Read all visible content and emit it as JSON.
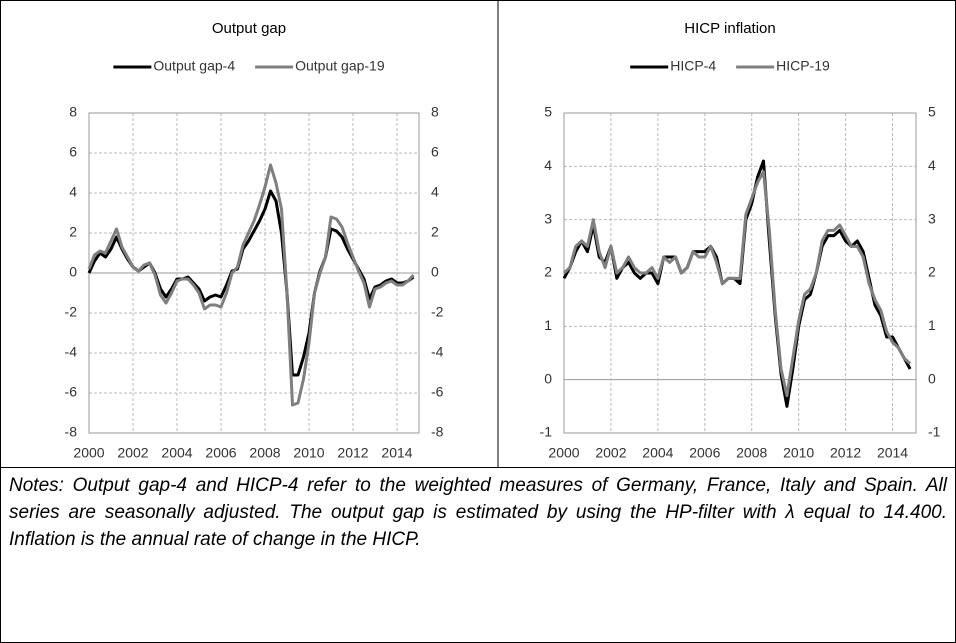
{
  "chart_data": [
    {
      "type": "line",
      "title": "Output gap",
      "x": [
        2000,
        2000.25,
        2000.5,
        2000.75,
        2001,
        2001.25,
        2001.5,
        2001.75,
        2002,
        2002.25,
        2002.5,
        2002.75,
        2003,
        2003.25,
        2003.5,
        2003.75,
        2004,
        2004.25,
        2004.5,
        2004.75,
        2005,
        2005.25,
        2005.5,
        2005.75,
        2006,
        2006.25,
        2006.5,
        2006.75,
        2007,
        2007.25,
        2007.5,
        2007.75,
        2008,
        2008.25,
        2008.5,
        2008.75,
        2009,
        2009.25,
        2009.5,
        2009.75,
        2010,
        2010.25,
        2010.5,
        2010.75,
        2011,
        2011.25,
        2011.5,
        2011.75,
        2012,
        2012.25,
        2012.5,
        2012.75,
        2013,
        2013.25,
        2013.5,
        2013.75,
        2014,
        2014.25,
        2014.5,
        2014.75
      ],
      "series": [
        {
          "name": "Output gap-4",
          "color": "#000000",
          "values": [
            0.0,
            0.6,
            1.0,
            0.8,
            1.2,
            1.8,
            1.2,
            0.7,
            0.3,
            0.1,
            0.3,
            0.5,
            0.0,
            -0.8,
            -1.2,
            -0.8,
            -0.3,
            -0.3,
            -0.2,
            -0.5,
            -0.8,
            -1.4,
            -1.2,
            -1.1,
            -1.2,
            -0.6,
            0.1,
            0.2,
            1.2,
            1.6,
            2.1,
            2.6,
            3.2,
            4.1,
            3.6,
            2.0,
            -1.0,
            -5.1,
            -5.1,
            -4.2,
            -3.0,
            -1.0,
            0.1,
            0.8,
            2.2,
            2.1,
            1.8,
            1.2,
            0.7,
            0.2,
            -0.3,
            -1.3,
            -0.7,
            -0.6,
            -0.4,
            -0.3,
            -0.5,
            -0.5,
            -0.4,
            -0.2
          ]
        },
        {
          "name": "Output gap-19",
          "color": "#7f7f7f",
          "values": [
            0.2,
            0.9,
            1.1,
            1.0,
            1.6,
            2.2,
            1.3,
            0.8,
            0.3,
            0.1,
            0.4,
            0.5,
            -0.1,
            -1.1,
            -1.5,
            -1.0,
            -0.4,
            -0.3,
            -0.3,
            -0.6,
            -1.0,
            -1.8,
            -1.6,
            -1.6,
            -1.7,
            -1.0,
            0.0,
            0.3,
            1.4,
            2.0,
            2.6,
            3.4,
            4.3,
            5.4,
            4.5,
            3.2,
            -1.0,
            -6.6,
            -6.5,
            -5.3,
            -3.5,
            -1.0,
            0.0,
            0.8,
            2.8,
            2.7,
            2.3,
            1.5,
            0.8,
            0.1,
            -0.5,
            -1.7,
            -0.8,
            -0.7,
            -0.5,
            -0.4,
            -0.6,
            -0.6,
            -0.4,
            -0.1
          ]
        }
      ],
      "xlim": [
        2000,
        2015
      ],
      "xticks": [
        2000,
        2002,
        2004,
        2006,
        2008,
        2010,
        2012,
        2014
      ],
      "ylim": [
        -8,
        8
      ],
      "yticks": [
        -8,
        -6,
        -4,
        -2,
        0,
        2,
        4,
        6,
        8
      ],
      "y2lim": [
        -8,
        8
      ],
      "y2ticks": [
        -8,
        -6,
        -4,
        -2,
        0,
        2,
        4,
        6,
        8
      ],
      "grid": true,
      "legend": "top"
    },
    {
      "type": "line",
      "title": "HICP inflation",
      "x": [
        2000,
        2000.25,
        2000.5,
        2000.75,
        2001,
        2001.25,
        2001.5,
        2001.75,
        2002,
        2002.25,
        2002.5,
        2002.75,
        2003,
        2003.25,
        2003.5,
        2003.75,
        2004,
        2004.25,
        2004.5,
        2004.75,
        2005,
        2005.25,
        2005.5,
        2005.75,
        2006,
        2006.25,
        2006.5,
        2006.75,
        2007,
        2007.25,
        2007.5,
        2007.75,
        2008,
        2008.25,
        2008.5,
        2008.75,
        2009,
        2009.25,
        2009.5,
        2009.75,
        2010,
        2010.25,
        2010.5,
        2010.75,
        2011,
        2011.25,
        2011.5,
        2011.75,
        2012,
        2012.25,
        2012.5,
        2012.75,
        2013,
        2013.25,
        2013.5,
        2013.75,
        2014,
        2014.25,
        2014.5,
        2014.75
      ],
      "series": [
        {
          "name": "HICP-4",
          "color": "#000000",
          "values": [
            1.9,
            2.1,
            2.4,
            2.6,
            2.4,
            2.9,
            2.3,
            2.2,
            2.5,
            1.9,
            2.1,
            2.2,
            2.0,
            1.9,
            2.0,
            2.0,
            1.8,
            2.3,
            2.3,
            2.3,
            2.0,
            2.1,
            2.4,
            2.4,
            2.4,
            2.5,
            2.3,
            1.8,
            1.9,
            1.9,
            1.8,
            3.0,
            3.3,
            3.8,
            4.1,
            2.6,
            1.2,
            0.1,
            -0.5,
            0.2,
            1.0,
            1.5,
            1.6,
            2.0,
            2.5,
            2.7,
            2.7,
            2.8,
            2.6,
            2.5,
            2.6,
            2.4,
            1.9,
            1.4,
            1.2,
            0.8,
            0.8,
            0.6,
            0.4,
            0.2
          ]
        },
        {
          "name": "HICP-19",
          "color": "#7f7f7f",
          "values": [
            2.0,
            2.1,
            2.5,
            2.6,
            2.5,
            3.0,
            2.4,
            2.1,
            2.5,
            2.0,
            2.1,
            2.3,
            2.1,
            2.0,
            2.0,
            2.1,
            1.9,
            2.3,
            2.2,
            2.3,
            2.0,
            2.1,
            2.4,
            2.3,
            2.3,
            2.5,
            2.2,
            1.8,
            1.9,
            1.9,
            1.9,
            3.1,
            3.4,
            3.7,
            3.9,
            2.8,
            1.3,
            0.2,
            -0.3,
            0.4,
            1.1,
            1.6,
            1.7,
            2.0,
            2.6,
            2.8,
            2.8,
            2.9,
            2.7,
            2.5,
            2.5,
            2.3,
            1.8,
            1.5,
            1.3,
            0.9,
            0.7,
            0.6,
            0.4,
            0.3
          ]
        }
      ],
      "xlim": [
        2000,
        2015
      ],
      "xticks": [
        2000,
        2002,
        2004,
        2006,
        2008,
        2010,
        2012,
        2014
      ],
      "ylim": [
        -1,
        5
      ],
      "yticks": [
        -1,
        0,
        1,
        2,
        3,
        4,
        5
      ],
      "y2lim": [
        -1,
        5
      ],
      "y2ticks": [
        -1,
        0,
        1,
        2,
        3,
        4,
        5
      ],
      "grid": true,
      "legend": "top"
    }
  ],
  "notes": "Notes: Output gap-4 and HICP-4 refer to the weighted measures of Germany, France, Italy and Spain. All series are seasonally adjusted. The output gap is estimated by using the HP-filter with λ equal to 14.400. Inflation is the annual rate of change in the HICP."
}
